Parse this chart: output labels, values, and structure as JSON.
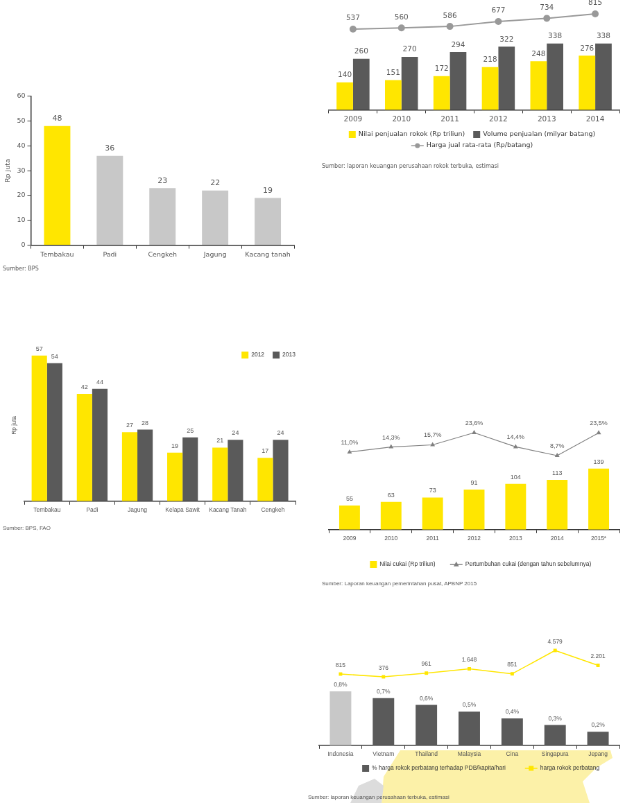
{
  "chart_data": [
    {
      "type": "bar",
      "categories": [
        "Tembakau",
        "Padi",
        "Cengkeh",
        "Jagung",
        "Kacang tanah"
      ],
      "values": [
        48,
        36,
        23,
        22,
        19
      ],
      "colors": [
        "#ffe600",
        "#c8c8c8",
        "#c8c8c8",
        "#c8c8c8",
        "#c8c8c8"
      ],
      "ylabel": "Rp juta",
      "ylim": [
        0,
        60
      ],
      "yticks": [
        0,
        10,
        20,
        30,
        40,
        50,
        60
      ],
      "data_labels": true,
      "annotations": [
        "Sumber: BPS"
      ]
    },
    {
      "type": "line",
      "categories": [
        null,
        null,
        null,
        null,
        null,
        null
      ],
      "series": [
        {
          "name": "Harga jual rata-rata (Rp/batang)",
          "color": "#999999",
          "marker": "circle",
          "values": [
            537,
            560,
            586,
            677,
            734,
            815
          ]
        }
      ],
      "data_labels": true,
      "legend": "bottom"
    },
    {
      "type": "bar",
      "categories": [
        "2009",
        "2010",
        "2011",
        "2012",
        "2013",
        "2014"
      ],
      "series": [
        {
          "name": "Nilai penjualan rokok (Rp triliun)",
          "color": "#ffe600",
          "values": [
            140,
            151,
            172,
            218,
            248,
            276
          ]
        },
        {
          "name": "Volume penjualan (milyar batang)",
          "color": "#5a5a5a",
          "values": [
            260,
            270,
            294,
            322,
            338,
            338
          ]
        }
      ],
      "data_labels": true,
      "legend": "bottom",
      "annotations": [
        "Sumber: laporan keuangan perusahaan rokok terbuka, estimasi"
      ]
    },
    {
      "type": "bar",
      "categories": [
        "Tembakau",
        "Padi",
        "Jagung",
        "Kelapa Sawit",
        "Kacang Tanah",
        "Cengkeh"
      ],
      "series": [
        {
          "name": "2012",
          "color": "#ffe600",
          "values": [
            57,
            42,
            27,
            19,
            21,
            17
          ]
        },
        {
          "name": "2013",
          "color": "#5a5a5a",
          "values": [
            54,
            44,
            28,
            25,
            24,
            24
          ]
        }
      ],
      "ylabel": "Rp juta",
      "data_labels": true,
      "legend": "top right",
      "annotations": [
        "Sumber: BPS, FAO"
      ]
    },
    {
      "type": "line",
      "categories": [
        null,
        null,
        null,
        null,
        null,
        null,
        null
      ],
      "series": [
        {
          "name": "Pertumbuhan cukai (dengan tahun sebelumnya)",
          "color": "#808080",
          "marker": "triangle",
          "values": [
            11.0,
            14.3,
            15.7,
            23.6,
            14.4,
            8.7,
            23.5
          ],
          "value_labels": [
            "11,0%",
            "14,3%",
            "15,7%",
            "23,6%",
            "14,4%",
            "8,7%",
            "23,5%"
          ]
        }
      ],
      "legend": "bottom"
    },
    {
      "type": "bar",
      "categories": [
        "2009",
        "2010",
        "2011",
        "2012",
        "2013",
        "2014",
        "2015*"
      ],
      "series": [
        {
          "name": "Nilai cukai (Rp triliun)",
          "color": "#ffe600",
          "values": [
            55,
            63,
            73,
            91,
            104,
            113,
            139
          ]
        }
      ],
      "data_labels": true,
      "legend": "bottom",
      "annotations": [
        "Sumber: Laporan keuangan pemerintahan pusat, APBNP 2015"
      ]
    },
    {
      "type": "line",
      "categories": [
        null,
        null,
        null,
        null,
        null,
        null,
        null
      ],
      "series": [
        {
          "name": "harga rokok perbatang",
          "color": "#ffe600",
          "marker": "square",
          "values": [
            815,
            376,
            961,
            1648,
            851,
            4579,
            2201
          ],
          "value_labels": [
            "815",
            "376",
            "961",
            "1.648",
            "851",
            "4.579",
            "2.201"
          ]
        }
      ],
      "legend": "bottom"
    },
    {
      "type": "bar",
      "categories": [
        "Indonesia",
        "Vietnam",
        "Thailand",
        "Malaysia",
        "Cina",
        "Singapura",
        "Jepang"
      ],
      "series": [
        {
          "name": "% harga rokok perbatang terhadap PDB/kapita/hari",
          "color": "#5a5a5a",
          "colors": [
            "#c8c8c8",
            "#5a5a5a",
            "#5a5a5a",
            "#5a5a5a",
            "#5a5a5a",
            "#5a5a5a",
            "#5a5a5a"
          ],
          "values": [
            0.8,
            0.7,
            0.6,
            0.5,
            0.4,
            0.3,
            0.2
          ],
          "value_labels": [
            "0,8%",
            "0,7%",
            "0,6%",
            "0,5%",
            "0,4%",
            "0,3%",
            "0,2%"
          ]
        }
      ],
      "legend": "bottom",
      "annotations": [
        "Sumber: laporan keuangan perusahaan terbuka, estimasi"
      ]
    }
  ]
}
